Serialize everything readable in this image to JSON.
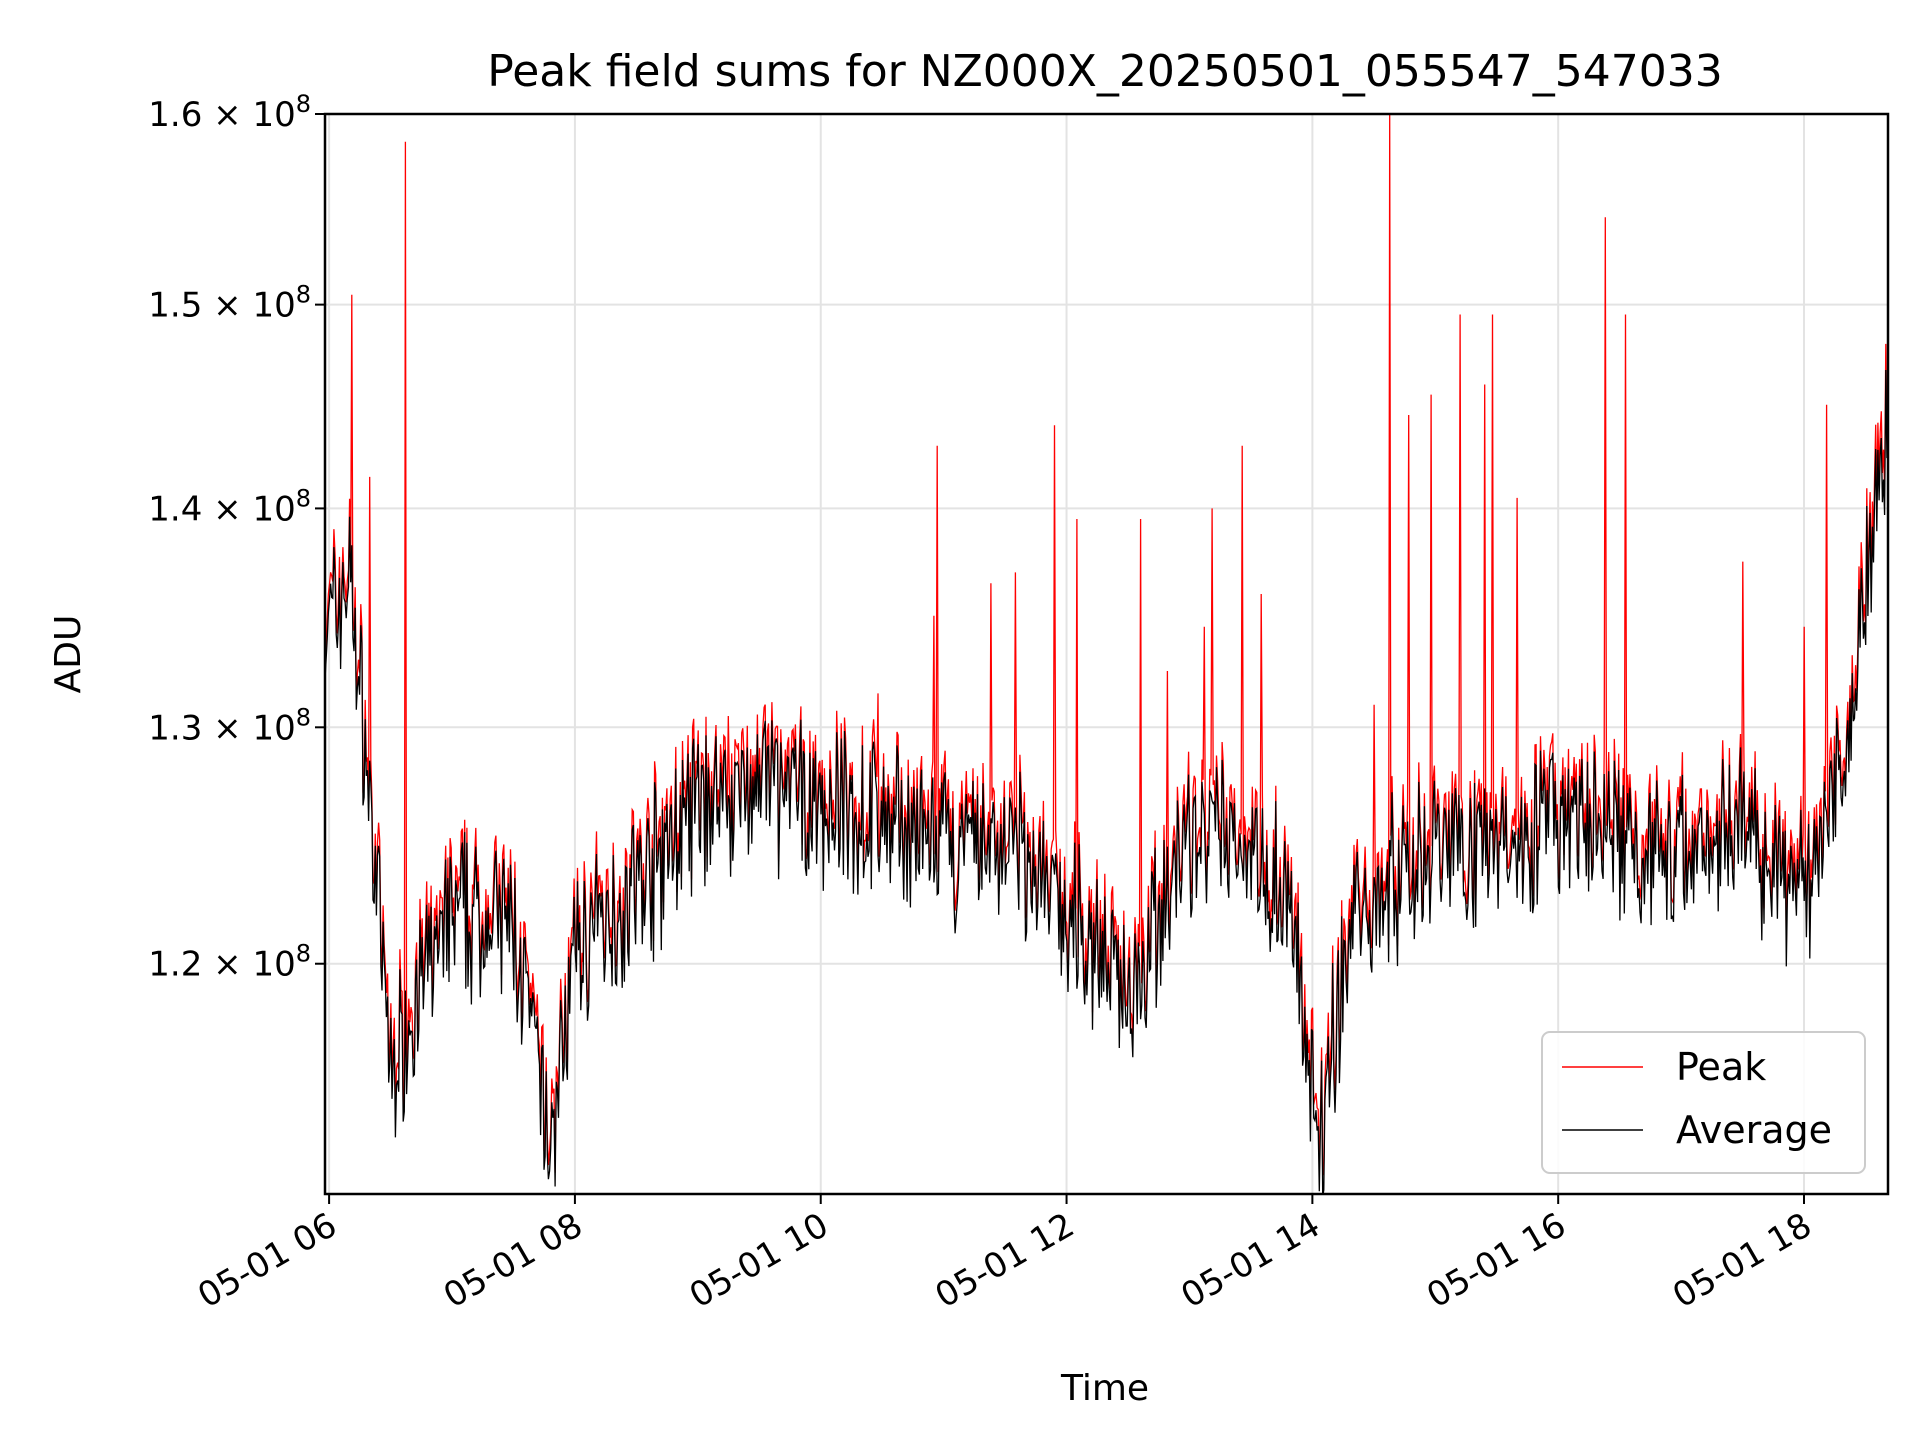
{
  "chart_data": {
    "type": "line",
    "title": "Peak field sums for NZ000X_20250501_055547_547033",
    "xlabel": "Time",
    "ylabel": "ADU",
    "x_range": [
      "05-01 05:58",
      "05-01 18:41"
    ],
    "ylim": [
      111000000.0,
      160000000.0
    ],
    "y_scale": "log",
    "grid": true,
    "legend_position": "lower right",
    "x_ticks": [
      "05-01 06",
      "05-01 08",
      "05-01 10",
      "05-01 12",
      "05-01 14",
      "05-01 16",
      "05-01 18"
    ],
    "y_ticks": [
      {
        "value": 120000000.0,
        "mantissa": "1.2",
        "exp": "8"
      },
      {
        "value": 130000000.0,
        "mantissa": "1.3",
        "exp": "8"
      },
      {
        "value": 140000000.0,
        "mantissa": "1.4",
        "exp": "8"
      },
      {
        "value": 150000000.0,
        "mantissa": "1.5",
        "exp": "8"
      },
      {
        "value": 160000000.0,
        "mantissa": "1.6",
        "exp": "8"
      }
    ],
    "series": [
      {
        "name": "Peak",
        "color": "#ff0000",
        "x": [
          "05-01 05:58",
          "05-01 06:10",
          "05-01 06:20",
          "05-01 06:30",
          "05-01 06:40",
          "05-01 07:00",
          "05-01 07:30",
          "05-01 07:48",
          "05-01 08:00",
          "05-01 08:30",
          "05-01 09:00",
          "05-01 09:30",
          "05-01 10:00",
          "05-01 10:30",
          "05-01 11:00",
          "05-01 11:30",
          "05-01 12:00",
          "05-01 12:30",
          "05-01 13:00",
          "05-01 13:30",
          "05-01 13:50",
          "05-01 14:02",
          "05-01 14:20",
          "05-01 14:40",
          "05-01 15:00",
          "05-01 15:30",
          "05-01 16:00",
          "05-01 16:30",
          "05-01 17:00",
          "05-01 17:30",
          "05-01 18:00",
          "05-01 18:20",
          "05-01 18:41"
        ],
        "values": [
          134500000.0,
          137500000.0,
          127000000.0,
          116000000.0,
          118500000.0,
          122500000.0,
          122000000.0,
          113000000.0,
          121000000.0,
          123500000.0,
          127000000.0,
          128000000.0,
          127000000.0,
          126500000.0,
          125000000.0,
          125500000.0,
          122500000.0,
          119500000.0,
          125500000.0,
          125500000.0,
          122500000.0,
          113000000.0,
          122500000.0,
          124000000.0,
          125500000.0,
          125500000.0,
          126500000.0,
          125500000.0,
          125000000.0,
          126500000.0,
          123000000.0,
          130000000.0,
          145000000.0
        ],
        "spikes": [
          {
            "x": "05-01 06:11",
            "value": 150500000.0
          },
          {
            "x": "05-01 06:20",
            "value": 141500000.0
          },
          {
            "x": "05-01 06:37",
            "value": 158500000.0
          },
          {
            "x": "05-01 09:15",
            "value": 130500000.0
          },
          {
            "x": "05-01 10:28",
            "value": 131500000.0
          },
          {
            "x": "05-01 10:55",
            "value": 135000000.0
          },
          {
            "x": "05-01 10:57",
            "value": 143000000.0
          },
          {
            "x": "05-01 11:23",
            "value": 136500000.0
          },
          {
            "x": "05-01 11:35",
            "value": 137000000.0
          },
          {
            "x": "05-01 11:54",
            "value": 144000000.0
          },
          {
            "x": "05-01 12:05",
            "value": 139500000.0
          },
          {
            "x": "05-01 12:36",
            "value": 139500000.0
          },
          {
            "x": "05-01 12:49",
            "value": 132500000.0
          },
          {
            "x": "05-01 13:07",
            "value": 134500000.0
          },
          {
            "x": "05-01 13:11",
            "value": 140000000.0
          },
          {
            "x": "05-01 13:26",
            "value": 143000000.0
          },
          {
            "x": "05-01 13:35",
            "value": 136000000.0
          },
          {
            "x": "05-01 14:30",
            "value": 131000000.0
          },
          {
            "x": "05-01 14:38",
            "value": 160000000.0
          },
          {
            "x": "05-01 14:47",
            "value": 144500000.0
          },
          {
            "x": "05-01 14:58",
            "value": 145500000.0
          },
          {
            "x": "05-01 15:12",
            "value": 149500000.0
          },
          {
            "x": "05-01 15:24",
            "value": 146000000.0
          },
          {
            "x": "05-01 15:28",
            "value": 149500000.0
          },
          {
            "x": "05-01 15:40",
            "value": 140500000.0
          },
          {
            "x": "05-01 16:23",
            "value": 154500000.0
          },
          {
            "x": "05-01 16:33",
            "value": 149500000.0
          },
          {
            "x": "05-01 17:30",
            "value": 137500000.0
          },
          {
            "x": "05-01 18:00",
            "value": 134500000.0
          },
          {
            "x": "05-01 18:11",
            "value": 145000000.0
          }
        ]
      },
      {
        "name": "Average",
        "color": "#000000",
        "x": [
          "05-01 05:58",
          "05-01 06:10",
          "05-01 06:20",
          "05-01 06:30",
          "05-01 06:40",
          "05-01 07:00",
          "05-01 07:30",
          "05-01 07:48",
          "05-01 08:00",
          "05-01 08:30",
          "05-01 09:00",
          "05-01 09:30",
          "05-01 10:00",
          "05-01 10:30",
          "05-01 11:00",
          "05-01 11:30",
          "05-01 12:00",
          "05-01 12:30",
          "05-01 13:00",
          "05-01 13:30",
          "05-01 13:50",
          "05-01 14:02",
          "05-01 14:20",
          "05-01 14:40",
          "05-01 15:00",
          "05-01 15:30",
          "05-01 16:00",
          "05-01 16:30",
          "05-01 17:00",
          "05-01 17:30",
          "05-01 18:00",
          "05-01 18:20",
          "05-01 18:41"
        ],
        "values": [
          134000000.0,
          137000000.0,
          126500000.0,
          115500000.0,
          118000000.0,
          122000000.0,
          121500000.0,
          112500000.0,
          120500000.0,
          123000000.0,
          126500000.0,
          127500000.0,
          126500000.0,
          126000000.0,
          124500000.0,
          125000000.0,
          122000000.0,
          119000000.0,
          125000000.0,
          125000000.0,
          122000000.0,
          112500000.0,
          122000000.0,
          123500000.0,
          125000000.0,
          125000000.0,
          126000000.0,
          125000000.0,
          124500000.0,
          126000000.0,
          122500000.0,
          129500000.0,
          144000000.0
        ]
      }
    ]
  }
}
